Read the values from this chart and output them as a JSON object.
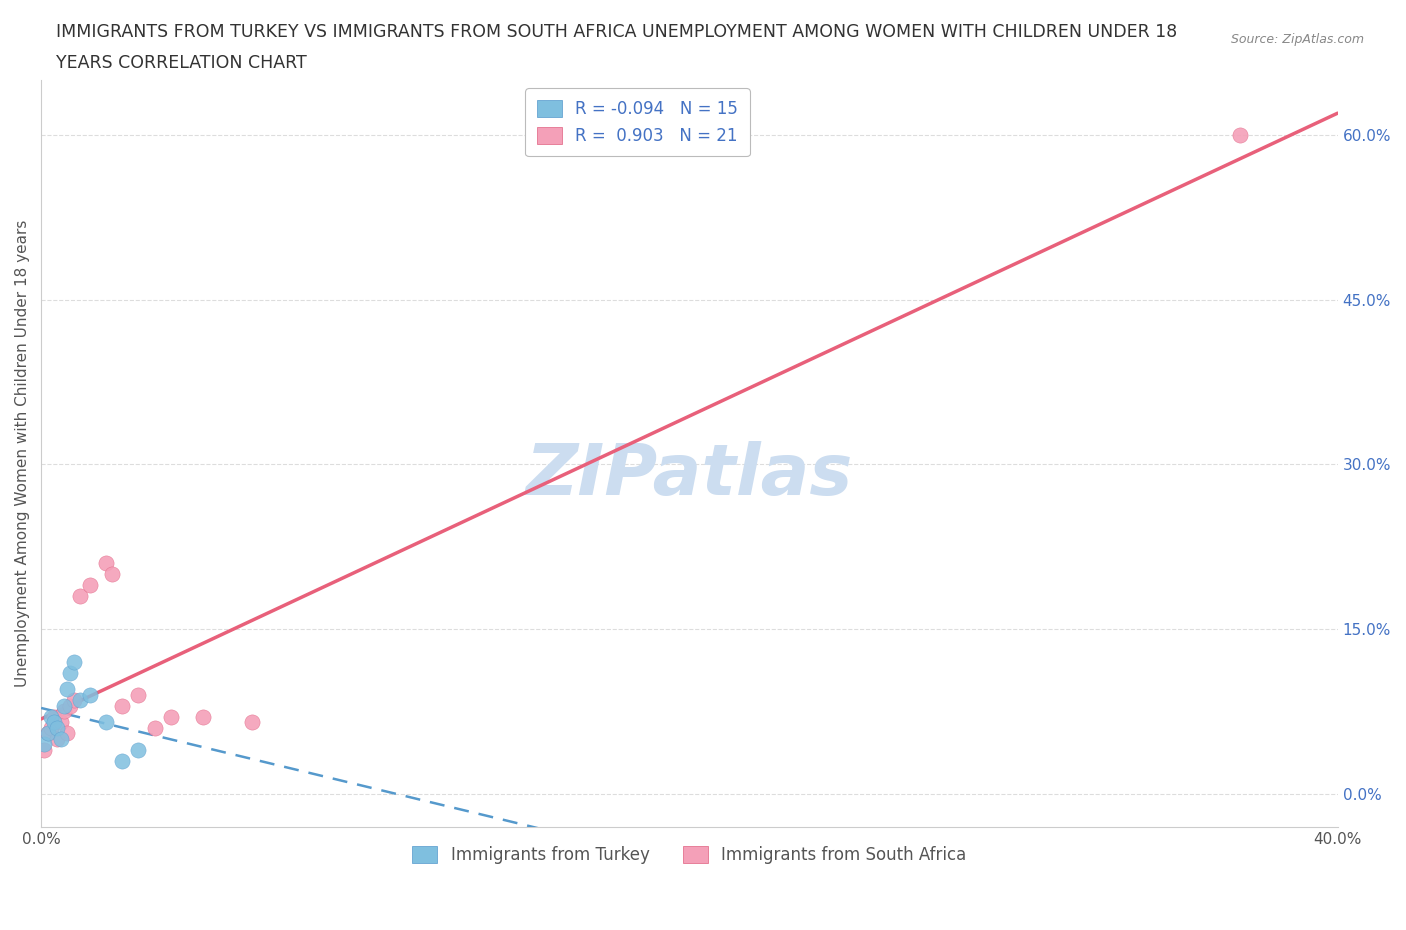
{
  "title_line1": "IMMIGRANTS FROM TURKEY VS IMMIGRANTS FROM SOUTH AFRICA UNEMPLOYMENT AMONG WOMEN WITH CHILDREN UNDER 18",
  "title_line2": "YEARS CORRELATION CHART",
  "source": "Source: ZipAtlas.com",
  "ylabel": "Unemployment Among Women with Children Under 18 years",
  "xlim": [
    0.0,
    0.4
  ],
  "ylim": [
    -0.03,
    0.65
  ],
  "xticks": [
    0.0,
    0.1,
    0.2,
    0.3,
    0.4
  ],
  "xtick_labels": [
    "0.0%",
    "",
    "",
    "",
    "40.0%"
  ],
  "yticks_right": [
    0.0,
    0.15,
    0.3,
    0.45,
    0.6
  ],
  "ytick_right_labels": [
    "0.0%",
    "15.0%",
    "30.0%",
    "45.0%",
    "60.0%"
  ],
  "turkey_color": "#7fbfdf",
  "south_africa_color": "#f4a0b8",
  "south_africa_edge_color": "#e06080",
  "trend_turkey_color": "#5599cc",
  "trend_sa_color": "#e8607a",
  "turkey_R": -0.094,
  "turkey_N": 15,
  "sa_R": 0.903,
  "sa_N": 21,
  "watermark": "ZIPatlas",
  "watermark_color": "#ccddf0",
  "legend_label_turkey": "Immigrants from Turkey",
  "legend_label_sa": "Immigrants from South Africa",
  "turkey_x": [
    0.001,
    0.002,
    0.003,
    0.004,
    0.005,
    0.006,
    0.007,
    0.008,
    0.009,
    0.01,
    0.012,
    0.015,
    0.02,
    0.025,
    0.03
  ],
  "turkey_y": [
    0.045,
    0.055,
    0.07,
    0.065,
    0.06,
    0.05,
    0.08,
    0.095,
    0.11,
    0.12,
    0.085,
    0.09,
    0.065,
    0.03,
    0.04
  ],
  "sa_x": [
    0.001,
    0.002,
    0.003,
    0.004,
    0.005,
    0.006,
    0.007,
    0.008,
    0.009,
    0.01,
    0.012,
    0.015,
    0.02,
    0.022,
    0.025,
    0.03,
    0.035,
    0.04,
    0.05,
    0.065,
    0.37
  ],
  "sa_y": [
    0.04,
    0.055,
    0.06,
    0.07,
    0.05,
    0.065,
    0.075,
    0.055,
    0.08,
    0.085,
    0.18,
    0.19,
    0.21,
    0.2,
    0.08,
    0.09,
    0.06,
    0.07,
    0.07,
    0.065,
    0.6
  ],
  "background_color": "#ffffff",
  "grid_color": "#dddddd",
  "title_fontsize": 12.5,
  "axis_label_fontsize": 11,
  "tick_fontsize": 11,
  "legend_fontsize": 12,
  "watermark_fontsize": 52,
  "dot_size": 120
}
